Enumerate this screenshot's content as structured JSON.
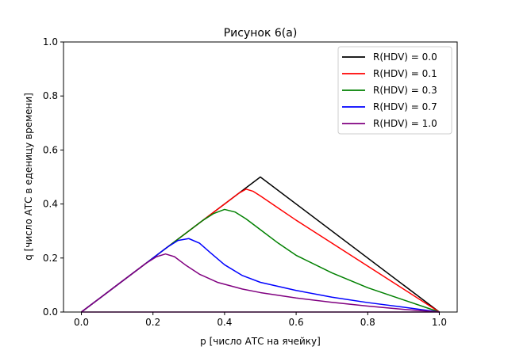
{
  "chart_data": {
    "type": "line",
    "title": "Рисунок 6(а)",
    "xlabel": "p [число АТС на ячейку]",
    "ylabel": "q [число АТС в еденицу времени]",
    "xlim": [
      -0.05,
      1.05
    ],
    "ylim": [
      0.0,
      1.0
    ],
    "xticks": [
      "0.0",
      "0.2",
      "0.4",
      "0.6",
      "0.8",
      "1.0"
    ],
    "yticks": [
      "0.0",
      "0.2",
      "0.4",
      "0.6",
      "0.8",
      "1.0"
    ],
    "grid": false,
    "legend_position": "top-right",
    "series": [
      {
        "name": "R(HDV) = 0.0",
        "color": "#000000",
        "x": [
          0.0,
          0.5,
          1.0
        ],
        "y": [
          0.0,
          0.5,
          0.0
        ]
      },
      {
        "name": "R(HDV) = 0.1",
        "color": "#ff0000",
        "x": [
          0.0,
          0.1,
          0.2,
          0.3,
          0.4,
          0.44,
          0.46,
          0.48,
          0.5,
          0.55,
          0.6,
          0.7,
          0.8,
          0.9,
          1.0
        ],
        "y": [
          0.0,
          0.1,
          0.2,
          0.3,
          0.4,
          0.44,
          0.455,
          0.447,
          0.43,
          0.385,
          0.34,
          0.255,
          0.17,
          0.085,
          0.0
        ]
      },
      {
        "name": "R(HDV) = 0.3",
        "color": "#008000",
        "x": [
          0.0,
          0.1,
          0.2,
          0.3,
          0.34,
          0.37,
          0.4,
          0.43,
          0.46,
          0.5,
          0.55,
          0.6,
          0.7,
          0.8,
          0.9,
          1.0
        ],
        "y": [
          0.0,
          0.1,
          0.2,
          0.3,
          0.34,
          0.365,
          0.38,
          0.37,
          0.345,
          0.305,
          0.255,
          0.21,
          0.145,
          0.09,
          0.045,
          0.0
        ]
      },
      {
        "name": "R(HDV) = 0.7",
        "color": "#0000ff",
        "x": [
          0.0,
          0.1,
          0.2,
          0.24,
          0.27,
          0.3,
          0.33,
          0.36,
          0.4,
          0.45,
          0.5,
          0.6,
          0.7,
          0.8,
          0.9,
          1.0
        ],
        "y": [
          0.0,
          0.1,
          0.2,
          0.24,
          0.265,
          0.272,
          0.255,
          0.22,
          0.175,
          0.135,
          0.11,
          0.08,
          0.055,
          0.035,
          0.018,
          0.0
        ]
      },
      {
        "name": "R(HDV) = 1.0",
        "color": "#800080",
        "x": [
          0.0,
          0.1,
          0.18,
          0.21,
          0.235,
          0.26,
          0.29,
          0.33,
          0.38,
          0.45,
          0.5,
          0.6,
          0.7,
          0.8,
          0.9,
          1.0
        ],
        "y": [
          0.0,
          0.1,
          0.18,
          0.205,
          0.215,
          0.205,
          0.175,
          0.14,
          0.11,
          0.085,
          0.072,
          0.052,
          0.036,
          0.022,
          0.01,
          0.0
        ]
      },
      {
        "name": "",
        "color": "#800080",
        "x": [
          0.0,
          1.0
        ],
        "y": [
          0.0,
          0.0
        ]
      }
    ]
  }
}
